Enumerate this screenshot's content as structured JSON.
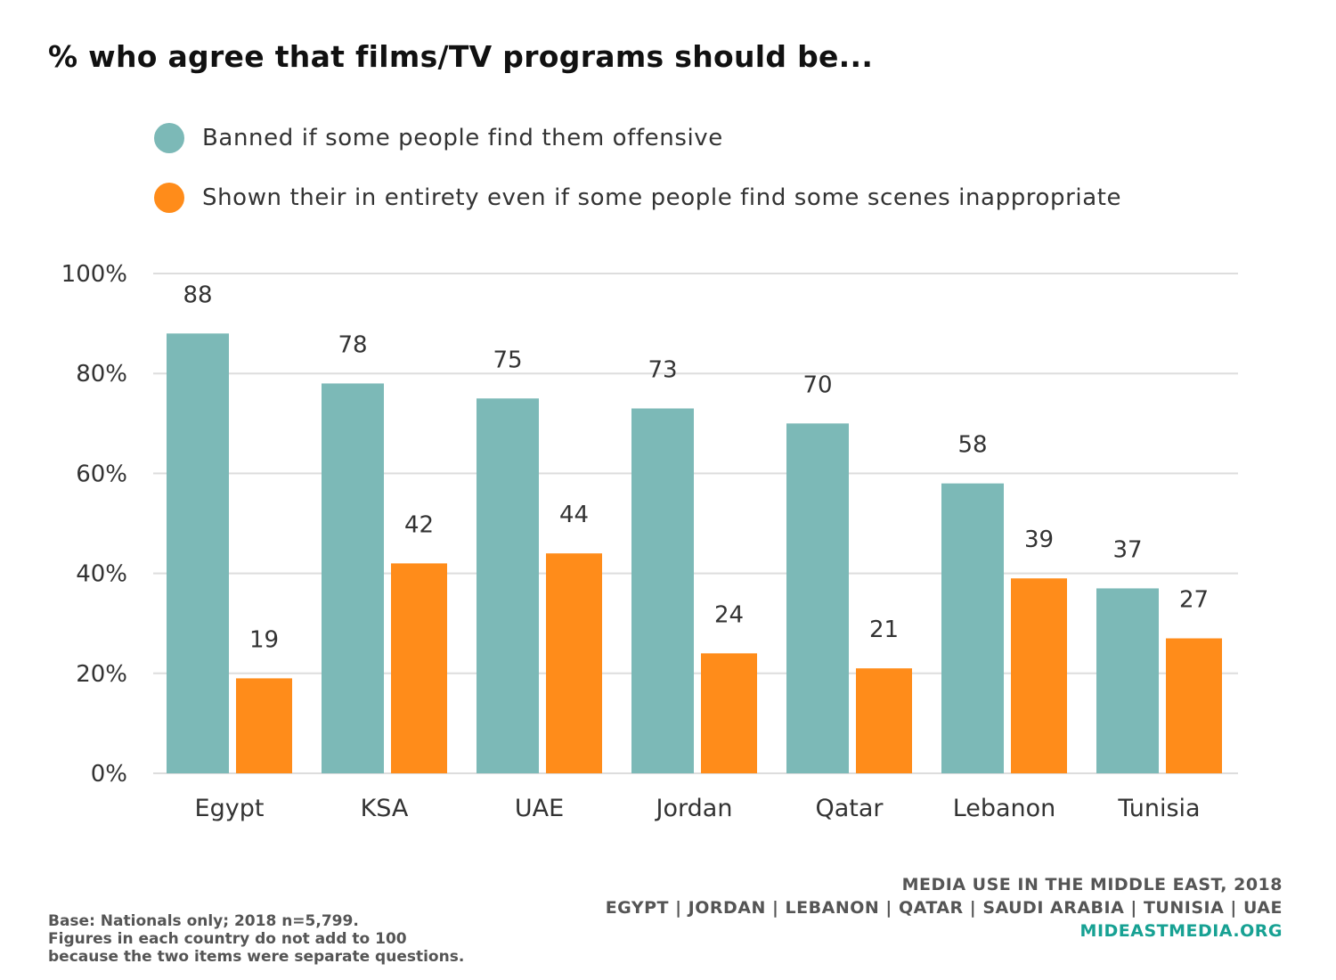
{
  "title": "% who agree that films/TV programs should be...",
  "chart_data": {
    "type": "bar",
    "categories": [
      "Egypt",
      "KSA",
      "UAE",
      "Jordan",
      "Qatar",
      "Lebanon",
      "Tunisia"
    ],
    "series": [
      {
        "name": "Banned if some people find them offensive",
        "color": "#7cb9b7",
        "values": [
          88,
          78,
          75,
          73,
          70,
          58,
          37
        ]
      },
      {
        "name": "Shown their in entirety even if some people find some scenes inappropriate",
        "color": "#ff8c1a",
        "values": [
          19,
          42,
          44,
          24,
          21,
          39,
          27
        ]
      }
    ],
    "ylim": [
      0,
      100
    ],
    "yticks": [
      0,
      20,
      40,
      60,
      80,
      100
    ],
    "ytick_labels": [
      "0%",
      "20%",
      "40%",
      "60%",
      "80%",
      "100%"
    ],
    "grid": true,
    "legend_placement": "top-left",
    "data_labels": true,
    "gridline_color": "#dddddd"
  },
  "footer": {
    "source_line1": "MEDIA USE IN THE MIDDLE EAST, 2018",
    "source_line2": "EGYPT | JORDAN | LEBANON | QATAR | SAUDI ARABIA | TUNISIA | UAE",
    "source_site": "MIDEASTMEDIA.ORG",
    "base_line1": "Base: Nationals only; 2018 n=5,799.",
    "base_line2": "Figures in each country do not add to 100",
    "base_line3": "because the two items were separate questions."
  }
}
